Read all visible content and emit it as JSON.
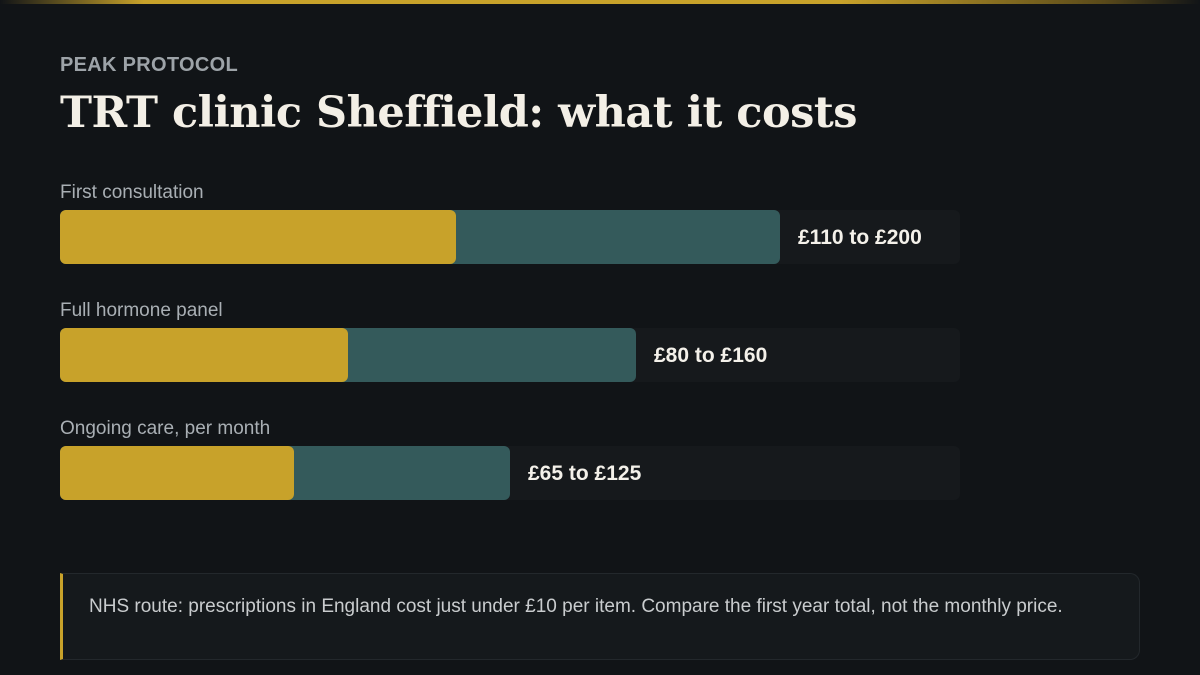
{
  "brand": "PEAK PROTOCOL",
  "title": "TRT clinic Sheffield: what it costs",
  "note": "NHS route: prescriptions in England cost just under £10 per item. Compare the first year total, not the monthly price.",
  "colors": {
    "background": "#111417",
    "track": "#16191c",
    "range_fill": "#345a5b",
    "low_fill": "#c8a22a",
    "accent": "#c8a22a"
  },
  "chart_data": {
    "type": "bar",
    "orientation": "horizontal",
    "style": "range",
    "unit": "£",
    "xlim": [
      0,
      250
    ],
    "grid": false,
    "legend": "none",
    "rows": [
      {
        "label": "First consultation",
        "low": 110,
        "high": 200,
        "value_label": "£110 to £200"
      },
      {
        "label": "Full hormone panel",
        "low": 80,
        "high": 160,
        "value_label": "£80 to £160"
      },
      {
        "label": "Ongoing care, per month",
        "low": 65,
        "high": 125,
        "value_label": "£65 to £125"
      }
    ]
  }
}
